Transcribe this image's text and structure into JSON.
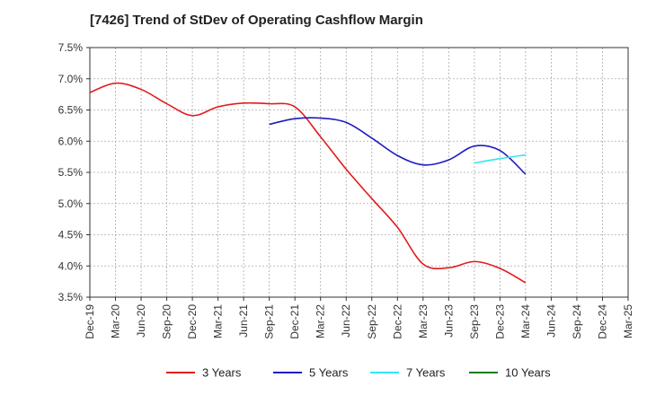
{
  "chart_data": {
    "type": "line",
    "title": "[7426]  Trend of StDev of Operating Cashflow Margin",
    "xlabel": "",
    "ylabel": "",
    "x": [
      "Dec-19",
      "Mar-20",
      "Jun-20",
      "Sep-20",
      "Dec-20",
      "Mar-21",
      "Jun-21",
      "Sep-21",
      "Dec-21",
      "Mar-22",
      "Jun-22",
      "Sep-22",
      "Dec-22",
      "Mar-23",
      "Jun-23",
      "Sep-23",
      "Dec-23",
      "Mar-24",
      "Jun-24",
      "Sep-24",
      "Dec-24",
      "Mar-25"
    ],
    "ylim": [
      3.5,
      7.5
    ],
    "yticks": [
      3.5,
      4.0,
      4.5,
      5.0,
      5.5,
      6.0,
      6.5,
      7.0,
      7.5
    ],
    "ytick_labels": [
      "3.5%",
      "4.0%",
      "4.5%",
      "5.0%",
      "5.5%",
      "6.0%",
      "6.5%",
      "7.0%",
      "7.5%"
    ],
    "grid": true,
    "legend_position": "bottom",
    "series": [
      {
        "name": "3 Years",
        "color": "#e41a1c",
        "values": [
          6.78,
          6.93,
          6.83,
          6.6,
          6.41,
          6.55,
          6.61,
          6.6,
          6.55,
          6.07,
          5.55,
          5.08,
          4.62,
          4.03,
          3.97,
          4.07,
          3.96,
          3.73,
          null,
          null,
          null,
          null
        ]
      },
      {
        "name": "5 Years",
        "color": "#1c1cbf",
        "values": [
          null,
          null,
          null,
          null,
          null,
          null,
          null,
          6.27,
          6.36,
          6.37,
          6.3,
          6.05,
          5.77,
          5.62,
          5.7,
          5.92,
          5.85,
          5.47,
          null,
          null,
          null,
          null
        ]
      },
      {
        "name": "7 Years",
        "color": "#33e5f2",
        "values": [
          null,
          null,
          null,
          null,
          null,
          null,
          null,
          null,
          null,
          null,
          null,
          null,
          null,
          null,
          null,
          5.65,
          5.72,
          5.78,
          null,
          null,
          null,
          null
        ]
      },
      {
        "name": "10 Years",
        "color": "#1a7a1a",
        "values": [
          null,
          null,
          null,
          null,
          null,
          null,
          null,
          null,
          null,
          null,
          null,
          null,
          null,
          null,
          null,
          null,
          null,
          null,
          null,
          null,
          null,
          null
        ]
      }
    ]
  }
}
